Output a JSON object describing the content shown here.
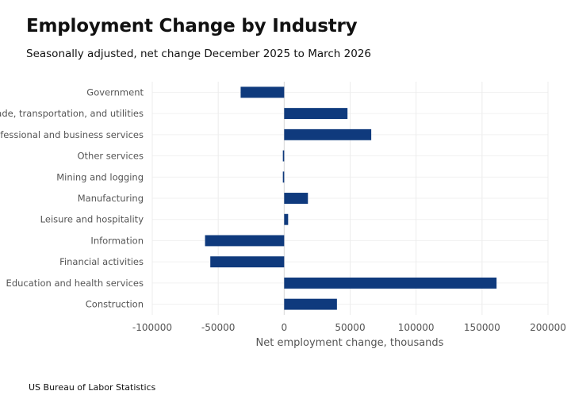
{
  "chart_data": {
    "type": "bar",
    "orientation": "horizontal",
    "title": "Employment Change by Industry",
    "subtitle": "Seasonally adjusted, net change December 2025 to March 2026",
    "xlabel": "Net employment change, thousands",
    "ylabel": "",
    "xlim": [
      -100000,
      200000
    ],
    "xticks": [
      "-100000",
      "-50000",
      "0",
      "50000",
      "100000",
      "150000",
      "200000"
    ],
    "grid": true,
    "bar_color": "#0f3a7d",
    "categories": [
      "Government",
      "Trade, transportation, and utilities",
      "Professional and business services",
      "Other services",
      "Mining and logging",
      "Manufacturing",
      "Leisure and hospitality",
      "Information",
      "Financial activities",
      "Education and health services",
      "Construction"
    ],
    "values": [
      -33000,
      48000,
      66000,
      -1000,
      -1000,
      18000,
      3000,
      -60000,
      -56000,
      161000,
      40000
    ]
  },
  "source": "US Bureau of Labor Statistics"
}
